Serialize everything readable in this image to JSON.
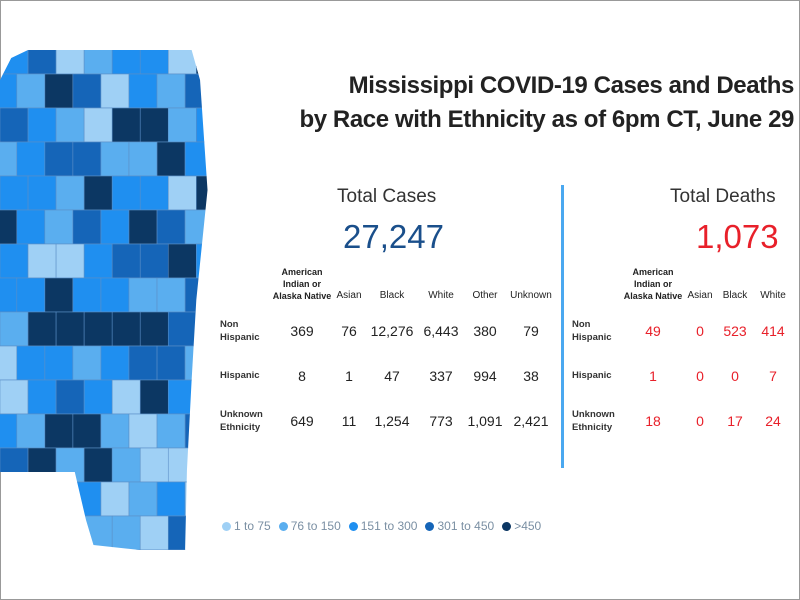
{
  "title_line1": "Mississippi COVID-19 Cases and Deaths",
  "title_line2": "by Race with Ethnicity as of 6pm CT, June 29",
  "cases": {
    "header": "Total Cases",
    "total": "27,247",
    "color": "#1a4f8b",
    "columns": [
      "American Indian or Alaska Native",
      "Asian",
      "Black",
      "White",
      "Other",
      "Unknown"
    ],
    "rows": [
      {
        "label": "Non Hispanic",
        "values": [
          "369",
          "76",
          "12,276",
          "6,443",
          "380",
          "79"
        ]
      },
      {
        "label": "Hispanic",
        "values": [
          "8",
          "1",
          "47",
          "337",
          "994",
          "38"
        ]
      },
      {
        "label": "Unknown Ethnicity",
        "values": [
          "649",
          "11",
          "1,254",
          "773",
          "1,091",
          "2,421"
        ]
      }
    ]
  },
  "deaths": {
    "header": "Total Deaths",
    "total": "1,073",
    "color": "#e8202a",
    "columns": [
      "American Indian or Alaska Native",
      "Asian",
      "Black",
      "White"
    ],
    "rows": [
      {
        "label": "Non Hispanic",
        "values": [
          "49",
          "0",
          "523",
          "414"
        ]
      },
      {
        "label": "Hispanic",
        "values": [
          "1",
          "0",
          "0",
          "7"
        ]
      },
      {
        "label": "Unknown Ethnicity",
        "values": [
          "18",
          "0",
          "17",
          "24"
        ]
      }
    ]
  },
  "legend": [
    {
      "label": "1 to 75",
      "color": "#9fd0f5"
    },
    {
      "label": "76 to 150",
      "color": "#5aaeef"
    },
    {
      "label": "151 to 300",
      "color": "#1f8ff0"
    },
    {
      "label": "301 to 450",
      "color": "#1565b8"
    },
    {
      "label": ">450",
      "color": "#0c3763"
    }
  ]
}
